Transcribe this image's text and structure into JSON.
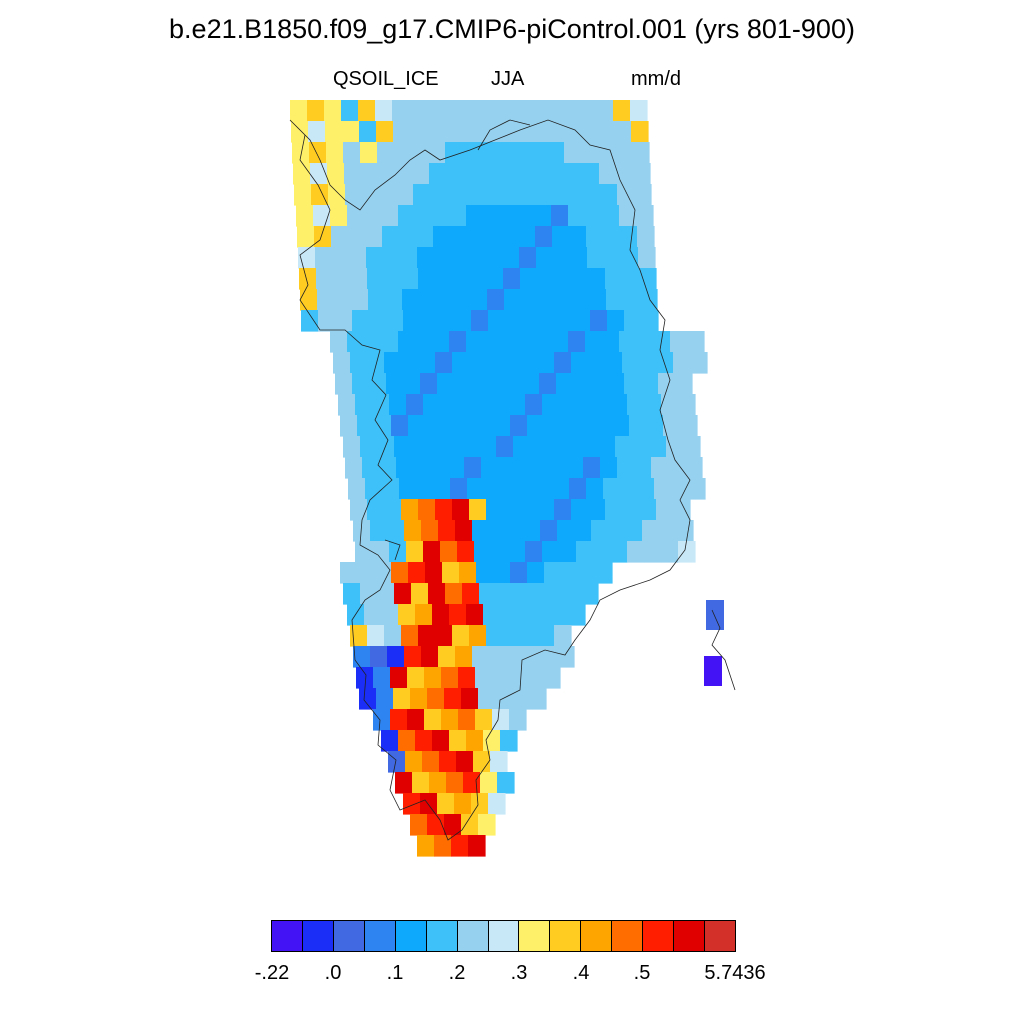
{
  "title": "b.e21.B1850.f09_g17.CMIP6-piControl.001 (yrs 801-900)",
  "variable": "QSOIL_ICE",
  "season": "JJA",
  "units": "mm/d",
  "map": {
    "region": "Greenland",
    "projection": "polar stereographic",
    "cell_field": "gridded colour-filled cells over Greenland; low values (blue) over the interior ice sheet, high values (yellow-red) along the southwest margin"
  },
  "colorbar": {
    "colors": [
      "#4413f5",
      "#1a2ef8",
      "#4169e1",
      "#2e85f2",
      "#0ea8fd",
      "#3ec1f8",
      "#96d2f0",
      "#c8e8f8",
      "#fff06a",
      "#ffcc22",
      "#ffa500",
      "#ff6c00",
      "#ff1e00",
      "#e00000",
      "#d4302a"
    ],
    "labels": [
      "-.22",
      ".0",
      ".1",
      ".2",
      ".3",
      ".4",
      ".5",
      "5.7436"
    ]
  }
}
